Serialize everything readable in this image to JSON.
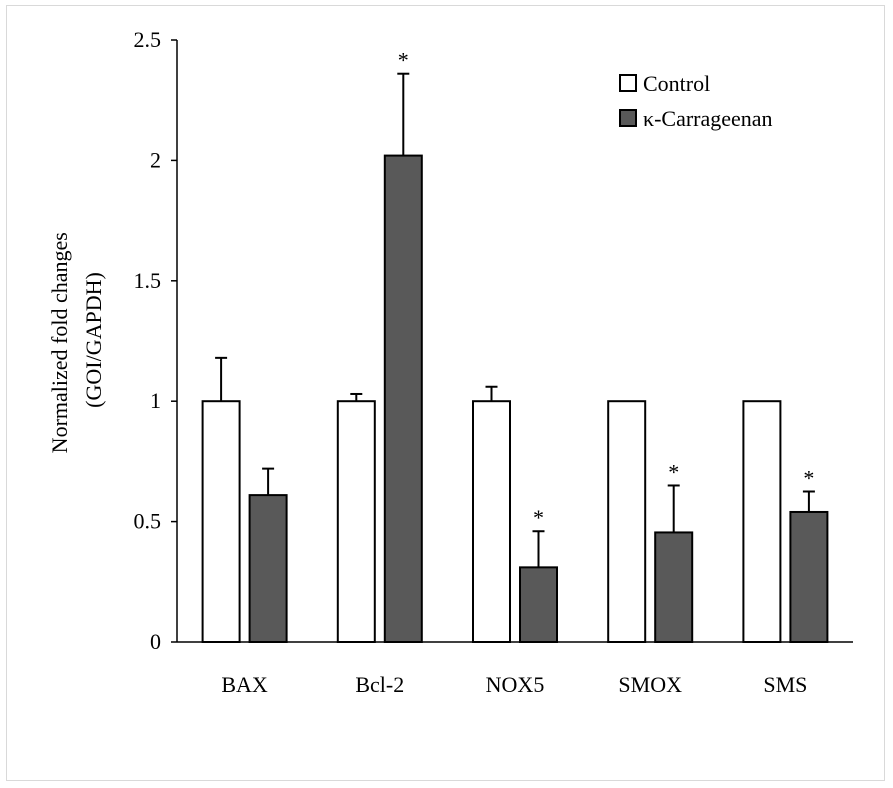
{
  "chart_data": {
    "type": "bar",
    "title": "",
    "xlabel": "",
    "ylabel_lines": [
      "Normalized fold changes",
      "(GOI/GAPDH)"
    ],
    "ylim": [
      0,
      2.5
    ],
    "yticks": [
      0,
      0.5,
      1,
      1.5,
      2,
      2.5
    ],
    "ytick_labels": [
      "0",
      "0.5",
      "1",
      "1.5",
      "2",
      "2.5"
    ],
    "categories": [
      "BAX",
      "Bcl-2",
      "NOX5",
      "SMOX",
      "SMS"
    ],
    "series": [
      {
        "name": "Control",
        "color": "#ffffff",
        "values": [
          1.0,
          1.0,
          1.0,
          1.0,
          1.0
        ],
        "errors": [
          0.18,
          0.03,
          0.06,
          0.0,
          0.0
        ],
        "significant": [
          false,
          false,
          false,
          false,
          false
        ]
      },
      {
        "name": "κ-Carrageenan",
        "color": "#595959",
        "values": [
          0.61,
          2.02,
          0.31,
          0.455,
          0.54
        ],
        "errors": [
          0.11,
          0.34,
          0.15,
          0.195,
          0.085
        ],
        "significant": [
          false,
          true,
          true,
          true,
          true
        ]
      }
    ],
    "significance_marker": "*",
    "legend": {
      "position": "top-right",
      "entries": [
        "Control",
        "κ-Carrageenan"
      ]
    }
  }
}
